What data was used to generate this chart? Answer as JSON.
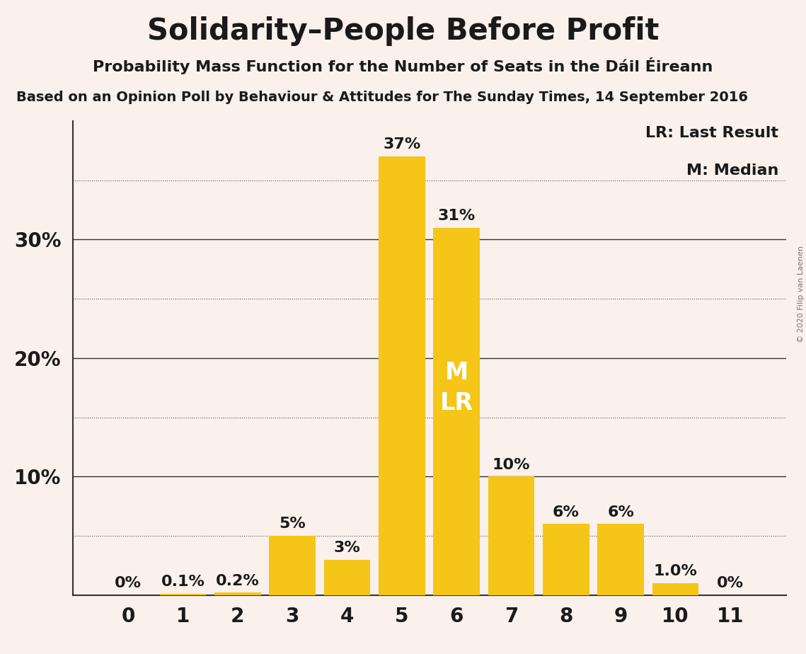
{
  "title": "Solidarity–People Before Profit",
  "subtitle": "Probability Mass Function for the Number of Seats in the Dáil Éireann",
  "source": "Based on an Opinion Poll by Behaviour & Attitudes for The Sunday Times, 14 September 2016",
  "copyright": "© 2020 Filip van Laenen",
  "categories": [
    0,
    1,
    2,
    3,
    4,
    5,
    6,
    7,
    8,
    9,
    10,
    11
  ],
  "values": [
    0.0,
    0.001,
    0.002,
    0.05,
    0.03,
    0.37,
    0.31,
    0.1,
    0.06,
    0.06,
    0.01,
    0.0
  ],
  "bar_color": "#F5C518",
  "background_color": "#FAF0EC",
  "text_color": "#1a1a1a",
  "label_texts": [
    "0%",
    "0.1%",
    "0.2%",
    "5%",
    "3%",
    "37%",
    "31%",
    "10%",
    "6%",
    "6%",
    "1.0%",
    "0%"
  ],
  "median_seat": 6,
  "last_result_seat": 6,
  "legend_lr": "LR: Last Result",
  "legend_m": "M: Median",
  "ylim": [
    0,
    0.4
  ],
  "solid_lines": [
    0.1,
    0.2,
    0.3
  ],
  "dotted_lines": [
    0.05,
    0.15,
    0.25,
    0.35
  ],
  "ytick_positions": [
    0.1,
    0.2,
    0.3
  ],
  "ytick_labels": [
    "10%",
    "20%",
    "30%"
  ],
  "title_fontsize": 30,
  "subtitle_fontsize": 16,
  "source_fontsize": 14,
  "bar_label_fontsize": 16,
  "axis_label_fontsize": 20,
  "legend_fontsize": 16,
  "median_label_fontsize": 24
}
